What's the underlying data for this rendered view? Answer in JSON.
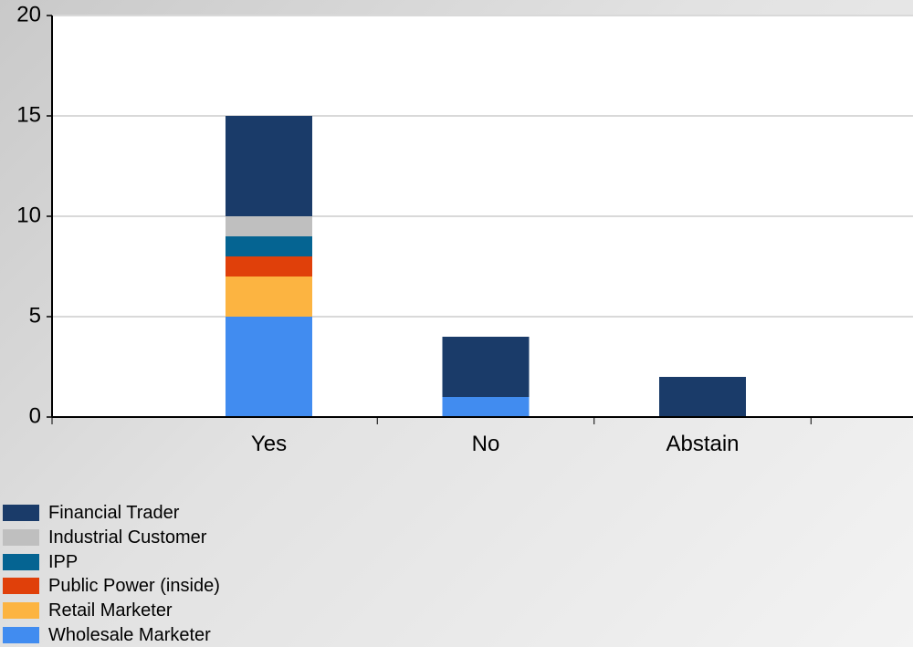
{
  "chart_data": {
    "type": "bar",
    "stacked": true,
    "categories": [
      "Yes",
      "No",
      "Abstain"
    ],
    "series": [
      {
        "name": "Wholesale Marketer",
        "color": "#418cf0",
        "values": [
          5,
          1,
          0
        ]
      },
      {
        "name": "Retail Marketer",
        "color": "#fcb441",
        "values": [
          2,
          0,
          0
        ]
      },
      {
        "name": "Public Power (inside)",
        "color": "#e0400a",
        "values": [
          1,
          0,
          0
        ]
      },
      {
        "name": "IPP",
        "color": "#056492",
        "values": [
          1,
          0,
          0
        ]
      },
      {
        "name": "Industrial Customer",
        "color": "#bfbfbf",
        "values": [
          1,
          0,
          0
        ]
      },
      {
        "name": "Financial Trader",
        "color": "#1a3b69",
        "values": [
          5,
          3,
          2
        ]
      }
    ],
    "ylim": [
      0,
      20
    ],
    "yticks": [
      0,
      5,
      10,
      15,
      20
    ],
    "grid": true,
    "legend_position": "bottom-left",
    "legend_order": [
      "Financial Trader",
      "Industrial Customer",
      "IPP",
      "Public Power (inside)",
      "Retail Marketer",
      "Wholesale Marketer"
    ]
  }
}
